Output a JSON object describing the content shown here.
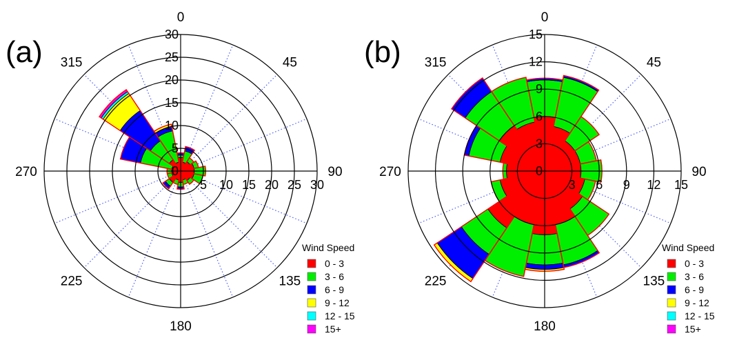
{
  "chart_data": [
    {
      "type": "windrose",
      "panel_label": "(a)",
      "ring_labels": [
        "0",
        "5",
        "10",
        "15",
        "20",
        "25",
        "30"
      ],
      "rmax": 30,
      "ring_step": 5,
      "direction_labels": [
        "0",
        "45",
        "90",
        "135",
        "180",
        "225",
        "270",
        "315"
      ],
      "sector_width_deg": 22.5,
      "legend": {
        "title": "Wind Speed",
        "items": [
          "0 - 3",
          "3 - 6",
          "6 - 9",
          "9 - 12",
          "12 - 15",
          "15+"
        ],
        "colors": [
          "#ff0000",
          "#00ee00",
          "#0000ff",
          "#ffff00",
          "#00ffff",
          "#ff00ff"
        ]
      },
      "sectors": [
        {
          "direction": 0,
          "cumulative": [
            3,
            3.5,
            4
          ]
        },
        {
          "direction": 22.5,
          "cumulative": [
            2,
            4.5,
            5.5
          ]
        },
        {
          "direction": 45,
          "cumulative": [
            2.5,
            3.5
          ]
        },
        {
          "direction": 67.5,
          "cumulative": [
            3,
            4
          ]
        },
        {
          "direction": 90,
          "cumulative": [
            3,
            5.5
          ]
        },
        {
          "direction": 112.5,
          "cumulative": [
            3,
            5
          ]
        },
        {
          "direction": 135,
          "cumulative": [
            2.5,
            3.5
          ]
        },
        {
          "direction": 157.5,
          "cumulative": [
            2,
            3
          ]
        },
        {
          "direction": 180,
          "cumulative": [
            2.5,
            3.5,
            4
          ]
        },
        {
          "direction": 202.5,
          "cumulative": [
            2,
            3
          ]
        },
        {
          "direction": 225,
          "cumulative": [
            3,
            4,
            4.7
          ]
        },
        {
          "direction": 247.5,
          "cumulative": [
            2,
            3
          ]
        },
        {
          "direction": 270,
          "cumulative": [
            2,
            3
          ]
        },
        {
          "direction": 292.5,
          "cumulative": [
            2,
            9,
            13.5
          ]
        },
        {
          "direction": 315,
          "cumulative": [
            3,
            8,
            16,
            20.5,
            21,
            21.5
          ]
        },
        {
          "direction": 337.5,
          "cumulative": [
            2,
            9,
            10,
            10.5
          ]
        }
      ]
    },
    {
      "type": "windrose",
      "panel_label": "(b)",
      "ring_labels": [
        "0",
        "3",
        "6",
        "9",
        "12",
        "15"
      ],
      "rmax": 15,
      "ring_step": 3,
      "direction_labels": [
        "0",
        "45",
        "90",
        "135",
        "180",
        "225",
        "270",
        "315"
      ],
      "sector_width_deg": 22.5,
      "legend": {
        "title": "Wind Speed",
        "items": [
          "0 - 3",
          "3 - 6",
          "6 - 9",
          "9 - 12",
          "12 - 15",
          "15+"
        ],
        "colors": [
          "#ff0000",
          "#00ee00",
          "#0000ff",
          "#ffff00",
          "#00ffff",
          "#ff00ff"
        ]
      },
      "sectors": [
        {
          "direction": 0,
          "cumulative": [
            6,
            10,
            10.2
          ]
        },
        {
          "direction": 22.5,
          "cumulative": [
            5,
            10.5,
            10.7
          ]
        },
        {
          "direction": 45,
          "cumulative": [
            4,
            7.2
          ]
        },
        {
          "direction": 67.5,
          "cumulative": [
            4,
            5.8
          ]
        },
        {
          "direction": 90,
          "cumulative": [
            4,
            6.3
          ]
        },
        {
          "direction": 112.5,
          "cumulative": [
            4.5,
            5.7
          ]
        },
        {
          "direction": 135,
          "cumulative": [
            5,
            8.5
          ]
        },
        {
          "direction": 157.5,
          "cumulative": [
            6,
            10.5,
            10.8
          ]
        },
        {
          "direction": 180,
          "cumulative": [
            7,
            10.3,
            10.8,
            11
          ]
        },
        {
          "direction": 202.5,
          "cumulative": [
            6,
            11.8
          ]
        },
        {
          "direction": 225,
          "cumulative": [
            7.5,
            11,
            14.2,
            14.6
          ]
        },
        {
          "direction": 247.5,
          "cumulative": [
            5,
            6
          ]
        },
        {
          "direction": 270,
          "cumulative": [
            4.2,
            4.6
          ]
        },
        {
          "direction": 292.5,
          "cumulative": [
            5,
            8.5,
            9
          ]
        },
        {
          "direction": 315,
          "cumulative": [
            6,
            10.5,
            12.3
          ]
        },
        {
          "direction": 337.5,
          "cumulative": [
            5.5,
            10.5
          ]
        }
      ]
    }
  ]
}
